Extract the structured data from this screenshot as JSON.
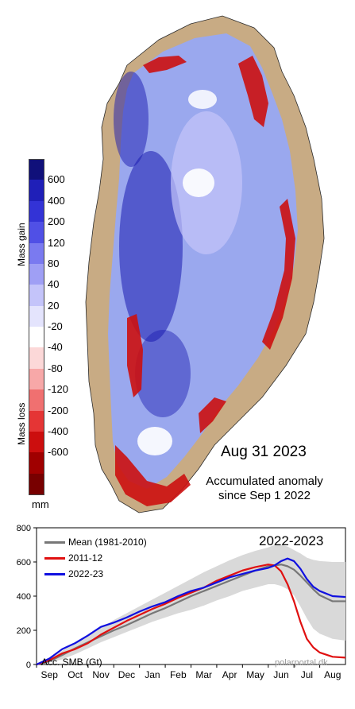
{
  "map": {
    "date": "Aug 31 2023",
    "caption_line1": "Accumulated anomaly",
    "caption_line2": "since Sep 1 2022",
    "unit": "mm",
    "gain_label": "Mass gain",
    "loss_label": "Mass loss",
    "scale_ticks": [
      "600",
      "400",
      "200",
      "120",
      "80",
      "40",
      "20",
      "-20",
      "-40",
      "-80",
      "-120",
      "-200",
      "-400",
      "-600"
    ],
    "scale_colors": [
      "#10107a",
      "#1f1fb8",
      "#3333d6",
      "#5050e6",
      "#7a7af0",
      "#9f9ff5",
      "#c4c4fa",
      "#e4e4fd",
      "#ffffff",
      "#fcd8d8",
      "#f7a8a8",
      "#f07070",
      "#e53535",
      "#cc0e0e",
      "#a00000",
      "#780000"
    ],
    "colors": {
      "land": "#c8ab84",
      "coast": "#2a2a2a",
      "ice": "#9aa8ee",
      "gain_strong": "#1a1ab0",
      "loss_strong": "#cc1010"
    }
  },
  "chart_data": {
    "type": "line",
    "title": "2022-2023",
    "ylabel": "Acc. SMB (Gt)",
    "credit": "polarportal.dk",
    "ylim": [
      0,
      800
    ],
    "yticks": [
      0,
      200,
      400,
      600,
      800
    ],
    "months": [
      "Sep",
      "Oct",
      "Nov",
      "Dec",
      "Jan",
      "Feb",
      "Mar",
      "Apr",
      "May",
      "Jun",
      "Jul",
      "Aug"
    ],
    "x": [
      0,
      0.5,
      1,
      1.5,
      2,
      2.5,
      3,
      3.5,
      4,
      4.5,
      5,
      5.5,
      6,
      6.5,
      7,
      7.5,
      8,
      8.5,
      9,
      9.25,
      9.5,
      9.75,
      10,
      10.25,
      10.5,
      10.75,
      11,
      11.5,
      12
    ],
    "series": [
      {
        "name": "Mean (1981-2010)",
        "color": "#777777",
        "values": [
          0,
          20,
          55,
          95,
          130,
          165,
          200,
          230,
          265,
          300,
          330,
          365,
          400,
          430,
          460,
          490,
          520,
          550,
          575,
          580,
          585,
          575,
          555,
          520,
          480,
          440,
          405,
          370,
          370
        ]
      },
      {
        "name": "2011-12",
        "color": "#e01010",
        "values": [
          0,
          25,
          65,
          90,
          125,
          175,
          215,
          255,
          290,
          325,
          355,
          390,
          420,
          450,
          490,
          520,
          550,
          570,
          585,
          580,
          545,
          470,
          370,
          250,
          150,
          100,
          70,
          45,
          40
        ]
      },
      {
        "name": "2022-23",
        "color": "#1010e0",
        "values": [
          0,
          35,
          90,
          125,
          170,
          220,
          245,
          275,
          310,
          340,
          365,
          400,
          430,
          450,
          480,
          510,
          530,
          550,
          565,
          580,
          605,
          620,
          605,
          560,
          500,
          455,
          430,
          400,
          395
        ]
      }
    ],
    "band_upper": [
      0,
      35,
      80,
      125,
      170,
      215,
      260,
      300,
      340,
      380,
      420,
      460,
      500,
      540,
      575,
      610,
      640,
      665,
      685,
      700,
      700,
      690,
      670,
      650,
      625,
      612,
      605,
      600,
      600
    ],
    "band_lower": [
      0,
      12,
      30,
      60,
      95,
      130,
      160,
      190,
      220,
      250,
      275,
      300,
      320,
      345,
      375,
      400,
      430,
      450,
      470,
      470,
      460,
      440,
      405,
      340,
      270,
      210,
      180,
      150,
      140
    ],
    "band_color": "#d9d9d9",
    "legend_placement": "top-left"
  }
}
